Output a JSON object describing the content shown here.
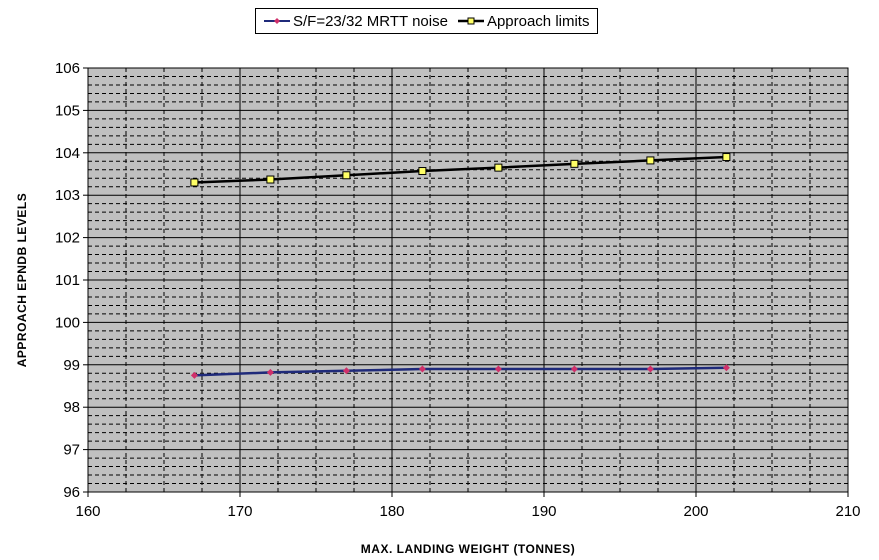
{
  "chart_data": {
    "type": "line",
    "title": "",
    "xlabel": "MAX. LANDING WEIGHT (TONNES)",
    "ylabel": "APPROACH EPNDB LEVELS",
    "xlim": [
      160,
      210
    ],
    "ylim": [
      96,
      106
    ],
    "x_ticks": [
      160,
      170,
      180,
      190,
      200,
      210
    ],
    "y_ticks": [
      96,
      97,
      98,
      99,
      100,
      101,
      102,
      103,
      104,
      105,
      106
    ],
    "x_minor_step": 2.5,
    "y_minor_step": 0.2,
    "grid": true,
    "plot_background": "#c0c0c0",
    "legend_position": "top-center",
    "series": [
      {
        "name": "S/F=23/32 MRTT noise",
        "color": "#1f2a7a",
        "marker": "diamond",
        "marker_color": "#d0306a",
        "x": [
          167,
          172,
          177,
          182,
          187,
          192,
          197,
          202
        ],
        "values": [
          98.75,
          98.82,
          98.86,
          98.9,
          98.9,
          98.9,
          98.9,
          98.93
        ]
      },
      {
        "name": "Approach limits",
        "color": "#000000",
        "marker": "square",
        "marker_color": "#ffff66",
        "x": [
          167,
          172,
          177,
          182,
          187,
          192,
          197,
          202
        ],
        "values": [
          103.3,
          103.37,
          103.47,
          103.57,
          103.65,
          103.74,
          103.82,
          103.9
        ]
      }
    ]
  }
}
